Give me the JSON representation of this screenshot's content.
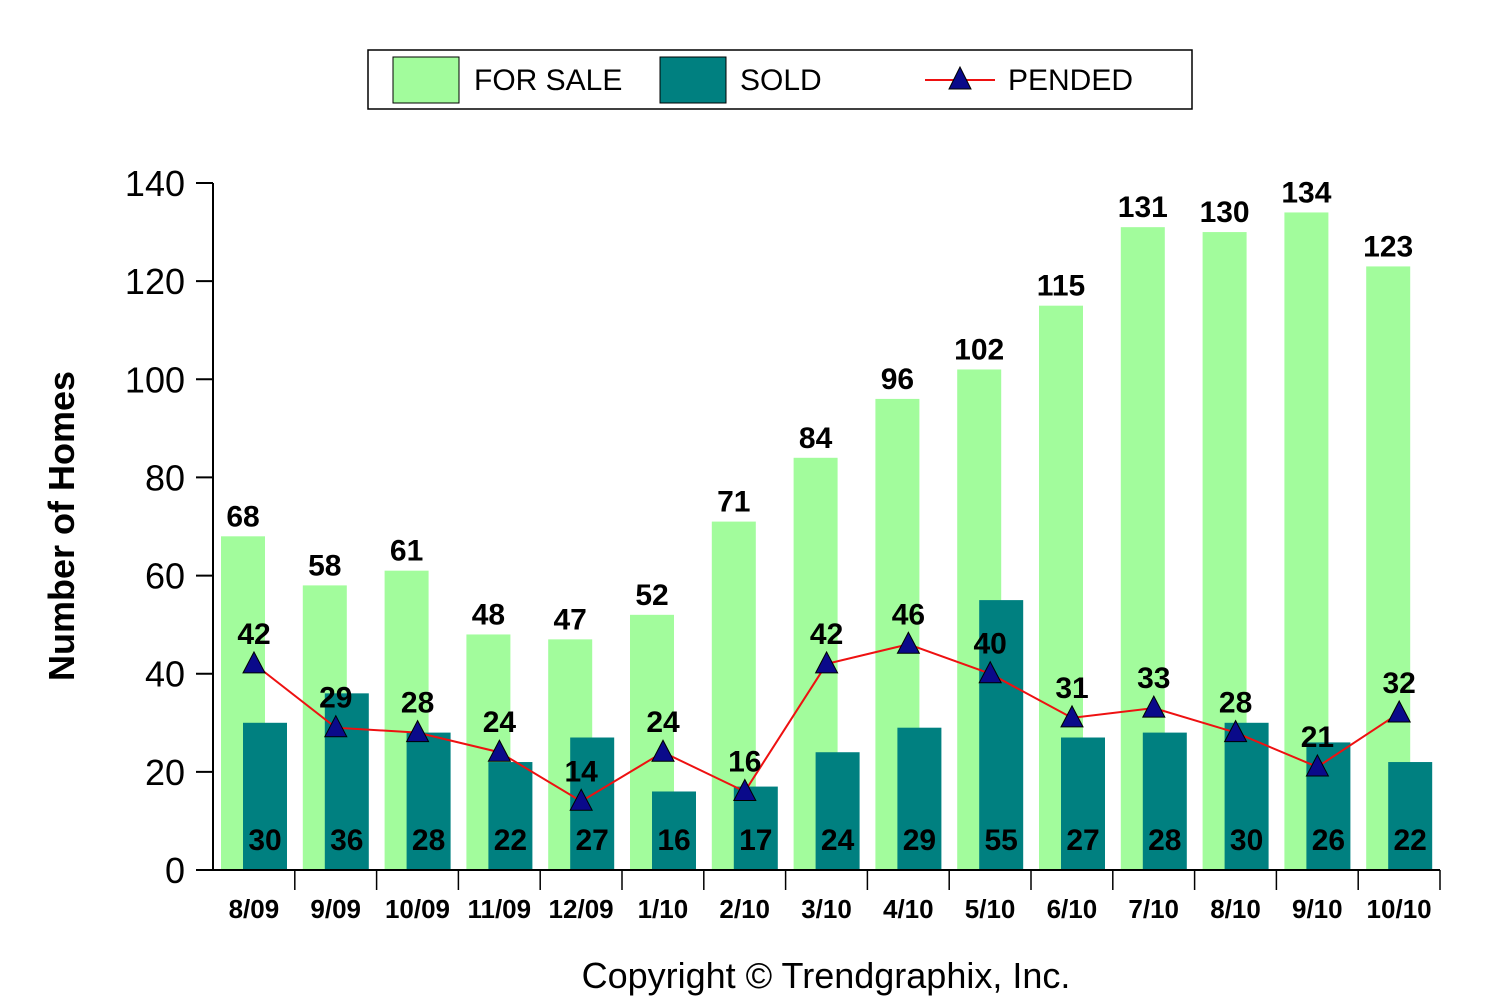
{
  "colors": {
    "for_sale": "#a2fc9c",
    "sold": "#008080",
    "pended_line": "#ee1111",
    "pended_marker": "#0a0a8a"
  },
  "chart_data": {
    "type": "bar",
    "title": "",
    "xlabel": "",
    "ylabel": "Number of Homes",
    "ylim": [
      0,
      140
    ],
    "yticks": [
      0,
      20,
      40,
      60,
      80,
      100,
      120,
      140
    ],
    "categories": [
      "8/09",
      "9/09",
      "10/09",
      "11/09",
      "12/09",
      "1/10",
      "2/10",
      "3/10",
      "4/10",
      "5/10",
      "6/10",
      "7/10",
      "8/10",
      "9/10",
      "10/10"
    ],
    "series": [
      {
        "name": "FOR SALE",
        "kind": "bar",
        "values": [
          68,
          58,
          61,
          48,
          47,
          52,
          71,
          84,
          96,
          102,
          115,
          131,
          130,
          134,
          123
        ]
      },
      {
        "name": "SOLD",
        "kind": "bar",
        "values": [
          30,
          36,
          28,
          22,
          27,
          16,
          17,
          24,
          29,
          55,
          27,
          28,
          30,
          26,
          22
        ]
      },
      {
        "name": "PENDED",
        "kind": "line",
        "marker": "triangle",
        "values": [
          42,
          29,
          28,
          24,
          14,
          24,
          16,
          42,
          46,
          40,
          31,
          33,
          28,
          21,
          32
        ]
      }
    ],
    "legend": {
      "placement": "top-center",
      "items": [
        "FOR SALE",
        "SOLD",
        "PENDED"
      ]
    },
    "grid": false
  },
  "footer": {
    "copyright": "Copyright © Trendgraphix, Inc."
  }
}
